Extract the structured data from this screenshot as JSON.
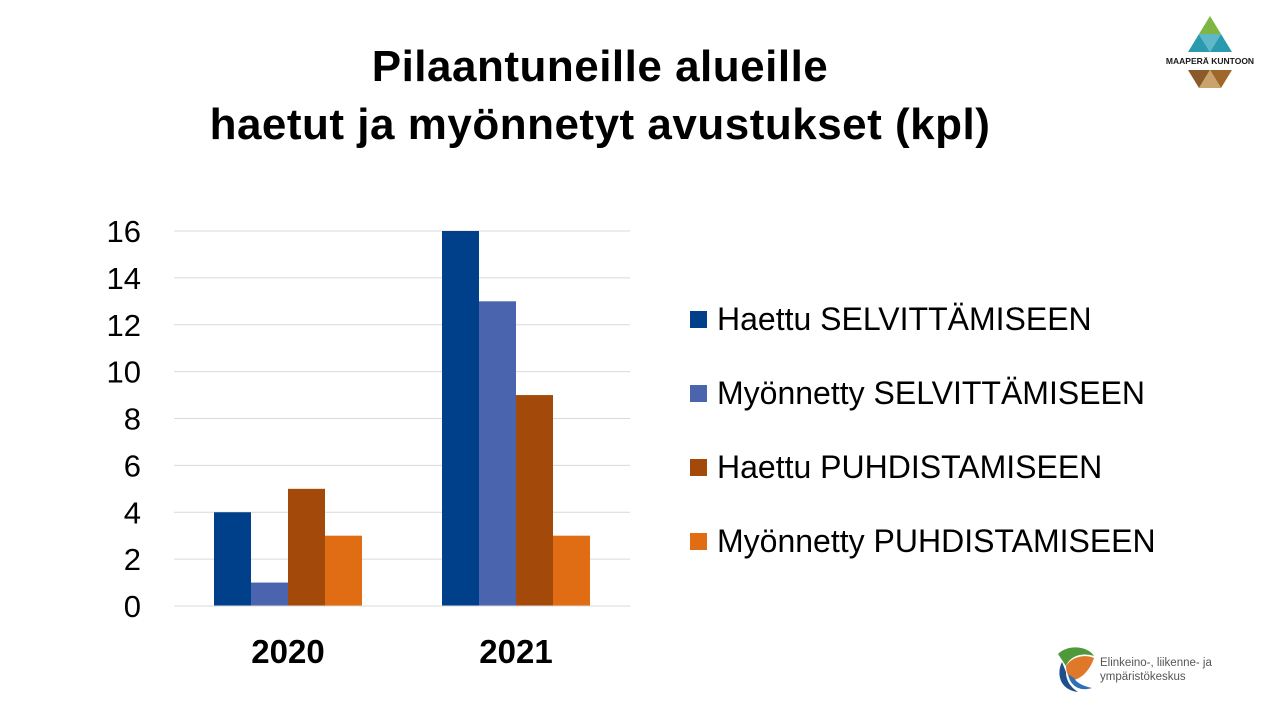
{
  "title": {
    "line1": "Pilaantuneille alueille",
    "line2": "haetut ja myönnetyt avustukset (kpl)"
  },
  "logo_top": {
    "text": "MAAPERÄ KUNTOON",
    "icon": "triangle-mosaic-logo-icon"
  },
  "logo_bottom": {
    "line1": "Elinkeino-, liikenne- ja",
    "line2": "ympäristökeskus",
    "icon": "ely-centre-logo-icon"
  },
  "colors": {
    "series1": "#003F8A",
    "series2": "#4A64AE",
    "series3": "#A34A0B",
    "series4": "#E06C13",
    "grid": "#D9D9D9"
  },
  "chart_data": {
    "type": "bar",
    "title": "Pilaantuneille alueille haetut ja myönnetyt avustukset (kpl)",
    "categories": [
      "2020",
      "2021"
    ],
    "series": [
      {
        "name": "Haettu SELVITTÄMISEEN",
        "values": [
          4,
          16
        ]
      },
      {
        "name": "Myönnetty SELVITTÄMISEEN",
        "values": [
          1,
          13
        ]
      },
      {
        "name": "Haettu PUHDISTAMISEEN",
        "values": [
          5,
          9
        ]
      },
      {
        "name": "Myönnetty PUHDISTAMISEEN",
        "values": [
          3,
          3
        ]
      }
    ],
    "ylim": [
      0,
      16
    ],
    "yticks": [
      "0",
      "2",
      "4",
      "6",
      "8",
      "10",
      "12",
      "14",
      "16"
    ],
    "grid": true,
    "legend_position": "right"
  }
}
